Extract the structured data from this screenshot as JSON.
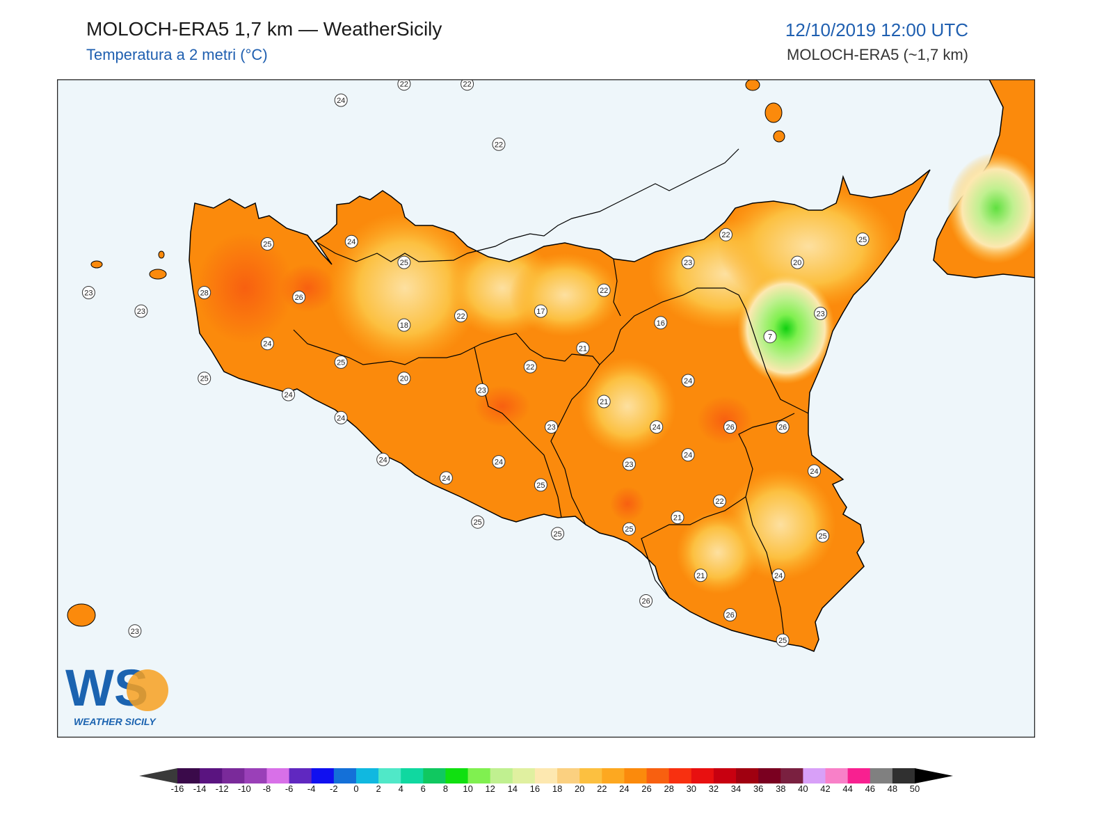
{
  "header": {
    "title": "MOLOCH-ERA5 1,7 km — WeatherSicily",
    "subtitle": "Temperatura a 2 metri (°C)",
    "date": "12/10/2019 12:00 UTC",
    "model": "MOLOCH-ERA5 (~1,7 km)"
  },
  "logo": {
    "text": "WS",
    "caption": "WEATHER SICILY"
  },
  "colors": {
    "sea": "#eef6fa",
    "land_base": "#fb8a0c",
    "border": "#000000"
  },
  "colorbar": {
    "ticks": [
      "-16",
      "-14",
      "-12",
      "-10",
      "-8",
      "-6",
      "-4",
      "-2",
      "0",
      "2",
      "4",
      "6",
      "8",
      "10",
      "12",
      "14",
      "16",
      "18",
      "20",
      "22",
      "24",
      "26",
      "28",
      "30",
      "32",
      "34",
      "36",
      "38",
      "40",
      "42",
      "44",
      "46",
      "48",
      "50"
    ],
    "colors": [
      "#3a0a4a",
      "#5a1480",
      "#7a2a9a",
      "#9a40b8",
      "#d870e8",
      "#6028c0",
      "#1010f0",
      "#1470d8",
      "#10b8e0",
      "#50e8c8",
      "#10d8a0",
      "#10c860",
      "#10e010",
      "#80f050",
      "#c0f090",
      "#e0f0a0",
      "#fde8b0",
      "#fbd080",
      "#fcc040",
      "#fda820",
      "#fb8a0c",
      "#f86010",
      "#f83010",
      "#e81010",
      "#c80010",
      "#a00010",
      "#7a0020",
      "#7a2040",
      "#d8a0f8",
      "#f880c8",
      "#f82090",
      "#808080",
      "#303030"
    ]
  },
  "stations": [
    {
      "v": "22",
      "lon": 13.25,
      "lat": 38.82
    },
    {
      "v": "24",
      "lon": 12.95,
      "lat": 38.75
    },
    {
      "v": "22",
      "lon": 13.55,
      "lat": 38.82
    },
    {
      "v": "22",
      "lon": 13.7,
      "lat": 38.56
    },
    {
      "v": "25",
      "lon": 12.6,
      "lat": 38.13
    },
    {
      "v": "24",
      "lon": 13.0,
      "lat": 38.14
    },
    {
      "v": "25",
      "lon": 13.25,
      "lat": 38.05
    },
    {
      "v": "23",
      "lon": 11.75,
      "lat": 37.92
    },
    {
      "v": "23",
      "lon": 12.0,
      "lat": 37.84
    },
    {
      "v": "28",
      "lon": 12.3,
      "lat": 37.92
    },
    {
      "v": "26",
      "lon": 12.75,
      "lat": 37.9
    },
    {
      "v": "24",
      "lon": 12.6,
      "lat": 37.7
    },
    {
      "v": "25",
      "lon": 12.95,
      "lat": 37.62
    },
    {
      "v": "25",
      "lon": 12.3,
      "lat": 37.55
    },
    {
      "v": "24",
      "lon": 12.7,
      "lat": 37.48
    },
    {
      "v": "24",
      "lon": 12.95,
      "lat": 37.38
    },
    {
      "v": "24",
      "lon": 13.15,
      "lat": 37.2
    },
    {
      "v": "20",
      "lon": 13.25,
      "lat": 37.55
    },
    {
      "v": "18",
      "lon": 13.25,
      "lat": 37.78
    },
    {
      "v": "22",
      "lon": 13.52,
      "lat": 37.82
    },
    {
      "v": "17",
      "lon": 13.9,
      "lat": 37.84
    },
    {
      "v": "22",
      "lon": 14.2,
      "lat": 37.93
    },
    {
      "v": "16",
      "lon": 14.47,
      "lat": 37.79
    },
    {
      "v": "21",
      "lon": 14.1,
      "lat": 37.68
    },
    {
      "v": "22",
      "lon": 13.85,
      "lat": 37.6
    },
    {
      "v": "23",
      "lon": 13.62,
      "lat": 37.5
    },
    {
      "v": "23",
      "lon": 13.95,
      "lat": 37.34
    },
    {
      "v": "21",
      "lon": 14.2,
      "lat": 37.45
    },
    {
      "v": "24",
      "lon": 14.45,
      "lat": 37.34
    },
    {
      "v": "24",
      "lon": 14.6,
      "lat": 37.54
    },
    {
      "v": "24",
      "lon": 13.45,
      "lat": 37.12
    },
    {
      "v": "24",
      "lon": 13.7,
      "lat": 37.19
    },
    {
      "v": "25",
      "lon": 13.9,
      "lat": 37.09
    },
    {
      "v": "25",
      "lon": 13.6,
      "lat": 36.93
    },
    {
      "v": "25",
      "lon": 13.98,
      "lat": 36.88
    },
    {
      "v": "23",
      "lon": 14.32,
      "lat": 37.18
    },
    {
      "v": "24",
      "lon": 14.6,
      "lat": 37.22
    },
    {
      "v": "26",
      "lon": 14.8,
      "lat": 37.34
    },
    {
      "v": "26",
      "lon": 15.05,
      "lat": 37.34
    },
    {
      "v": "7",
      "lon": 14.99,
      "lat": 37.73
    },
    {
      "v": "22",
      "lon": 14.78,
      "lat": 38.17
    },
    {
      "v": "23",
      "lon": 14.6,
      "lat": 38.05
    },
    {
      "v": "20",
      "lon": 15.12,
      "lat": 38.05
    },
    {
      "v": "25",
      "lon": 15.43,
      "lat": 38.15
    },
    {
      "v": "23",
      "lon": 15.23,
      "lat": 37.83
    },
    {
      "v": "24",
      "lon": 15.2,
      "lat": 37.15
    },
    {
      "v": "22",
      "lon": 14.75,
      "lat": 37.02
    },
    {
      "v": "21",
      "lon": 14.55,
      "lat": 36.95
    },
    {
      "v": "25",
      "lon": 14.32,
      "lat": 36.9
    },
    {
      "v": "25",
      "lon": 15.24,
      "lat": 36.87
    },
    {
      "v": "24",
      "lon": 15.03,
      "lat": 36.7
    },
    {
      "v": "21",
      "lon": 14.66,
      "lat": 36.7
    },
    {
      "v": "26",
      "lon": 14.4,
      "lat": 36.59
    },
    {
      "v": "26",
      "lon": 14.8,
      "lat": 36.53
    },
    {
      "v": "25",
      "lon": 15.05,
      "lat": 36.42
    },
    {
      "v": "23",
      "lon": 11.97,
      "lat": 36.46
    }
  ]
}
